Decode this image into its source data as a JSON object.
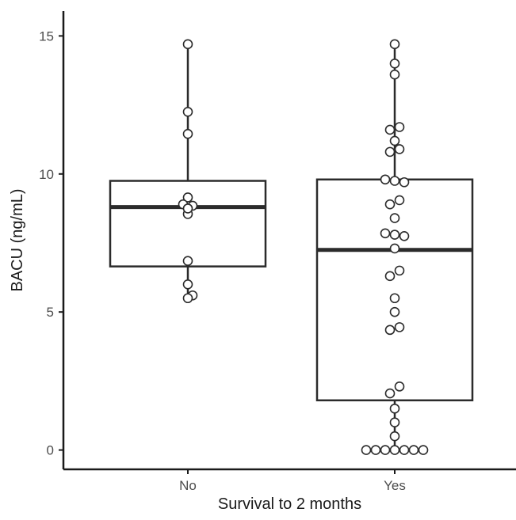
{
  "chart_data": {
    "type": "boxplot",
    "xlabel": "Survival to 2 months",
    "ylabel": "BACU (ng/mL)",
    "categories": [
      "No",
      "Yes"
    ],
    "ylim": [
      -0.7,
      15.9
    ],
    "yticks": [
      0,
      5,
      10,
      15
    ],
    "grid": false,
    "legend": "none",
    "boxes": [
      {
        "category": "No",
        "q1": 6.65,
        "median": 8.8,
        "q3": 9.75,
        "whisker_low": 5.5,
        "whisker_high": 14.7
      },
      {
        "category": "Yes",
        "q1": 1.8,
        "median": 7.25,
        "q3": 9.8,
        "whisker_low": 0,
        "whisker_high": 14.7
      }
    ],
    "points": [
      {
        "category": "No",
        "values": [
          14.7,
          12.25,
          11.45,
          9.15,
          8.9,
          8.85,
          8.55,
          8.75,
          6.85,
          6.0,
          5.6,
          5.5
        ],
        "offsets": [
          0,
          0,
          0,
          0,
          -0.5,
          0.5,
          0,
          0,
          0,
          0,
          0.5,
          0
        ]
      },
      {
        "category": "Yes",
        "values": [
          14.7,
          14.0,
          13.6,
          11.7,
          11.6,
          11.2,
          10.9,
          10.8,
          9.8,
          9.75,
          9.7,
          9.05,
          8.9,
          8.4,
          7.85,
          7.8,
          7.75,
          7.3,
          6.5,
          6.3,
          5.5,
          5.0,
          4.45,
          4.35,
          2.3,
          2.05,
          1.5,
          1.0,
          0.5,
          0,
          0,
          0,
          0,
          0,
          0,
          0
        ],
        "offsets": [
          0,
          0,
          0,
          0.5,
          -0.5,
          0,
          0.5,
          -0.5,
          -1,
          0,
          1,
          0.5,
          -0.5,
          0,
          -1,
          0,
          1,
          0,
          0.5,
          -0.5,
          0,
          0,
          0.5,
          -0.5,
          0.5,
          -0.5,
          0,
          0,
          0,
          -3,
          -2,
          -1,
          0,
          1,
          2,
          3
        ]
      }
    ]
  },
  "colors": {
    "box_stroke": "#2b2b2b",
    "median": "#2b2b2b",
    "point_fill": "#ffffff",
    "point_stroke": "#2b2b2b",
    "axis": "#1a1a1a",
    "text": "#4d4d4d",
    "title_text": "#1a1a1a"
  }
}
